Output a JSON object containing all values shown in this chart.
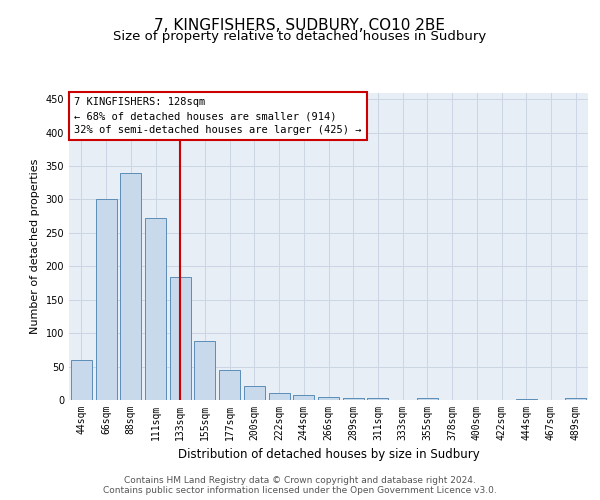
{
  "title": "7, KINGFISHERS, SUDBURY, CO10 2BE",
  "subtitle": "Size of property relative to detached houses in Sudbury",
  "xlabel": "Distribution of detached houses by size in Sudbury",
  "ylabel": "Number of detached properties",
  "bar_labels": [
    "44sqm",
    "66sqm",
    "88sqm",
    "111sqm",
    "133sqm",
    "155sqm",
    "177sqm",
    "200sqm",
    "222sqm",
    "244sqm",
    "266sqm",
    "289sqm",
    "311sqm",
    "333sqm",
    "355sqm",
    "378sqm",
    "400sqm",
    "422sqm",
    "444sqm",
    "467sqm",
    "489sqm"
  ],
  "bar_values": [
    60,
    300,
    340,
    272,
    184,
    88,
    45,
    21,
    10,
    7,
    4,
    3,
    3,
    0,
    3,
    0,
    0,
    0,
    2,
    0,
    3
  ],
  "bar_color": "#c9d9ec",
  "bar_edge_color": "#5b8db8",
  "vline_x_index": 4,
  "vline_color": "#cc0000",
  "annotation_line1": "7 KINGFISHERS: 128sqm",
  "annotation_line2": "← 68% of detached houses are smaller (914)",
  "annotation_line3": "32% of semi-detached houses are larger (425) →",
  "annotation_box_color": "#ffffff",
  "annotation_box_edge_color": "#cc0000",
  "ylim": [
    0,
    460
  ],
  "yticks": [
    0,
    50,
    100,
    150,
    200,
    250,
    300,
    350,
    400,
    450
  ],
  "grid_color": "#ccd5e3",
  "background_color": "#e8eef5",
  "footer_text": "Contains HM Land Registry data © Crown copyright and database right 2024.\nContains public sector information licensed under the Open Government Licence v3.0.",
  "title_fontsize": 11,
  "subtitle_fontsize": 9.5,
  "xlabel_fontsize": 8.5,
  "ylabel_fontsize": 8,
  "tick_fontsize": 7,
  "annotation_fontsize": 7.5,
  "footer_fontsize": 6.5
}
